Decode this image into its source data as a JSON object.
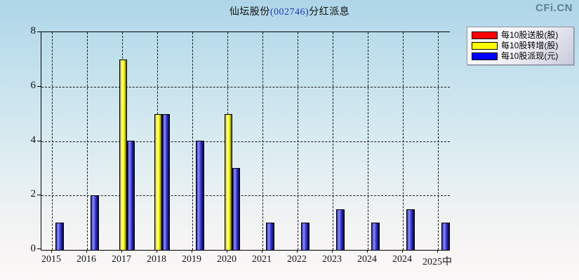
{
  "header": {
    "title_prefix": "仙坛股份",
    "title_code": "(002746)",
    "title_suffix": "分红派息",
    "logo": "CFi.CN"
  },
  "colors": {
    "code_blue": "#2233bb",
    "logo_gray": "#5f7f92",
    "bar_red": "#ff0000",
    "bar_yellow": "#ffff00",
    "bar_blue": "#0000ff",
    "grid_color": "#1a1a1a"
  },
  "chart_data": {
    "type": "bar",
    "title": "仙坛股份(002746)分红派息",
    "categories": [
      "2015",
      "2016",
      "2017",
      "2018",
      "2019",
      "2020",
      "2021",
      "2022",
      "2023",
      "2024",
      "2024",
      "2025中"
    ],
    "series": [
      {
        "name": "每10股送股(股)",
        "color": "#ff0000",
        "values": [
          0,
          0,
          0,
          0,
          0,
          0,
          0,
          0,
          0,
          0,
          0,
          0
        ]
      },
      {
        "name": "每10股转增(股)",
        "color": "#ffff00",
        "values": [
          0,
          0,
          7,
          5,
          0,
          5,
          0,
          0,
          0,
          0,
          0,
          0
        ]
      },
      {
        "name": "每10股派现(元)",
        "color": "#0000ff",
        "values": [
          1,
          2,
          4,
          5,
          4,
          3,
          1,
          1,
          1.5,
          1,
          1.5,
          1
        ]
      }
    ],
    "ylim": [
      0,
      8
    ],
    "yticks": [
      0,
      2,
      4,
      6,
      8
    ],
    "xlabel": "",
    "ylabel": "",
    "legend_position": "top-right",
    "grid": "dashed"
  }
}
